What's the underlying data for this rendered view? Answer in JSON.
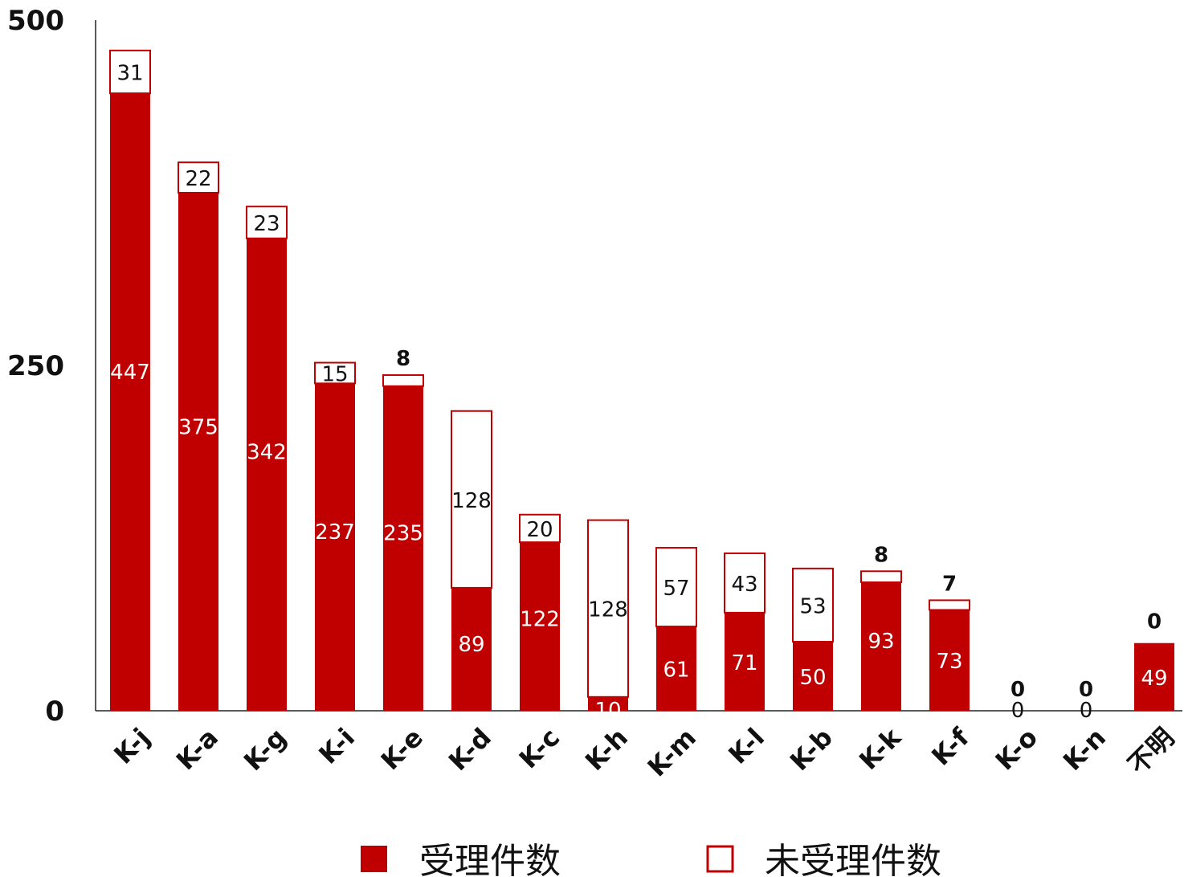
{
  "chart_data": {
    "type": "bar",
    "stacked": true,
    "categories": [
      "K-j",
      "K-a",
      "K-g",
      "K-i",
      "K-e",
      "K-d",
      "K-c",
      "K-h",
      "K-m",
      "K-l",
      "K-b",
      "K-k",
      "K-f",
      "K-o",
      "K-n",
      "不明"
    ],
    "series": [
      {
        "name": "受理件数",
        "values": [
          447,
          375,
          342,
          237,
          235,
          89,
          122,
          10,
          61,
          71,
          50,
          93,
          73,
          0,
          0,
          49
        ],
        "color": "#c00000",
        "style": "filled"
      },
      {
        "name": "未受理件数",
        "values": [
          31,
          22,
          23,
          15,
          8,
          128,
          20,
          128,
          57,
          43,
          53,
          8,
          7,
          0,
          0,
          0
        ],
        "color": "#c00000",
        "style": "outline"
      }
    ],
    "yticks": [
      "0",
      "250",
      "500"
    ],
    "ylim": [
      0,
      500
    ],
    "title": "",
    "xlabel": "",
    "ylabel": "",
    "grid": false,
    "legend_position": "bottom"
  }
}
